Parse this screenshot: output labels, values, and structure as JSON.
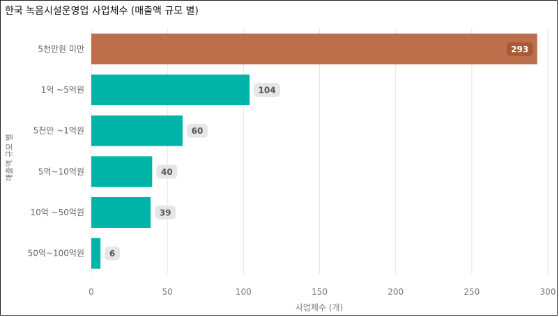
{
  "chart_data": {
    "type": "bar",
    "orientation": "horizontal",
    "title": "한국 녹음시설운영업 사업체수 (매출액 규모 별)",
    "xlabel": "사업체수 (개)",
    "ylabel": "매출액 규모 별",
    "categories": [
      "5천만원 미만",
      "1억 ~5억원",
      "5천만 ~1억원",
      "5억~10억원",
      "10억 ~50억원",
      "50억~100억원"
    ],
    "values": [
      293,
      104,
      60,
      40,
      39,
      6
    ],
    "xlim": [
      0,
      300
    ],
    "xticks": [
      0,
      50,
      100,
      150,
      200,
      250,
      300
    ],
    "grid": true,
    "colors": {
      "highlight": "#bd6f4b",
      "default": "#00b4a8",
      "badge_default": "#e6e6e6",
      "badge_highlight": "#a55a3a"
    }
  }
}
